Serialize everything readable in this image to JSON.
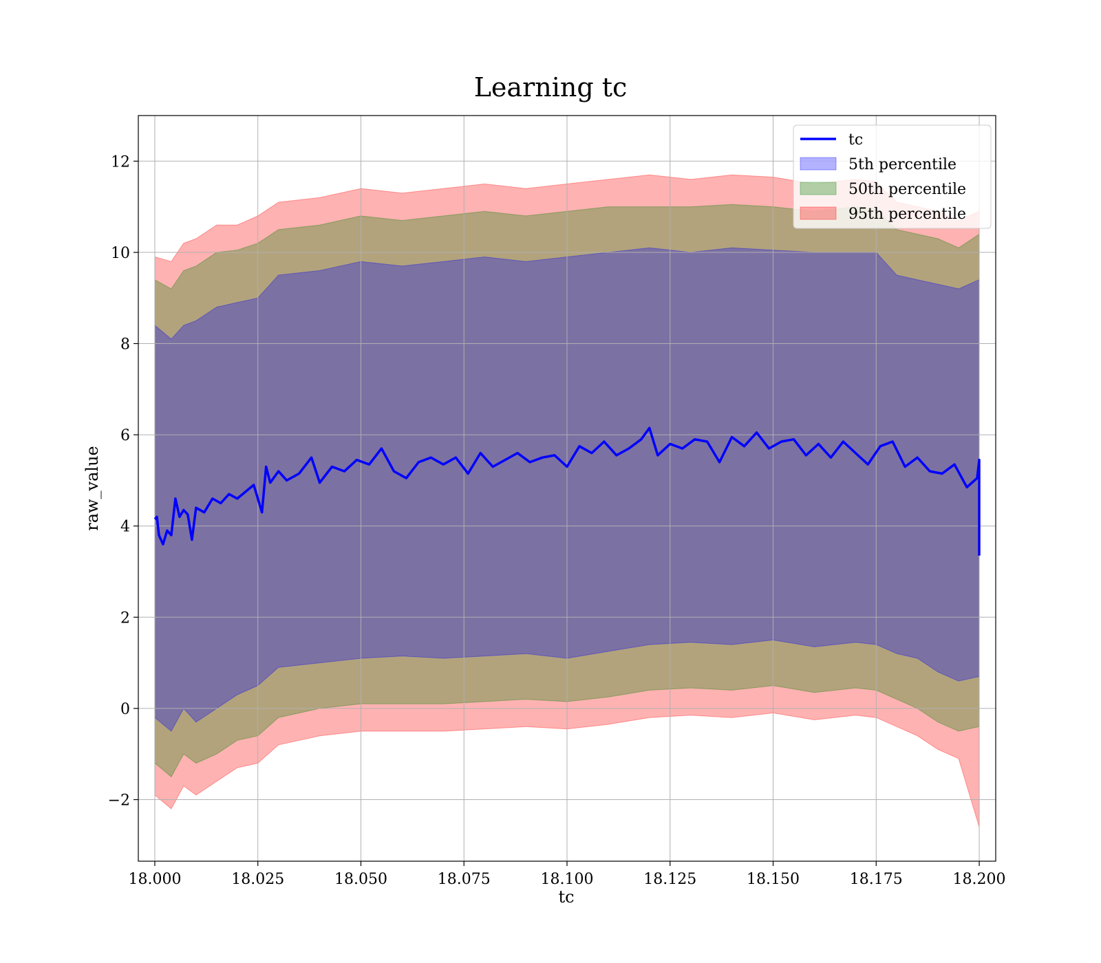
{
  "chart_data": {
    "type": "area",
    "title": "Learning tc",
    "xlabel": "tc",
    "ylabel": "raw_value",
    "xlim": [
      17.996,
      18.204
    ],
    "ylim": [
      -3.35,
      13.0
    ],
    "grid": true,
    "legend_placement": "top-right",
    "x_ticks": [
      18.0,
      18.025,
      18.05,
      18.075,
      18.1,
      18.125,
      18.15,
      18.175,
      18.2
    ],
    "x_tick_labels": [
      "18.000",
      "18.025",
      "18.050",
      "18.075",
      "18.100",
      "18.125",
      "18.150",
      "18.175",
      "18.200"
    ],
    "y_ticks": [
      -2,
      0,
      2,
      4,
      6,
      8,
      10,
      12
    ],
    "y_tick_labels": [
      "−2",
      "0",
      "2",
      "4",
      "6",
      "8",
      "10",
      "12"
    ],
    "legend": [
      {
        "label": "tc",
        "kind": "line",
        "color": "#0000ff"
      },
      {
        "label": "5th percentile",
        "kind": "band",
        "color": "#0000ff"
      },
      {
        "label": "50th percentile",
        "kind": "band",
        "color": "#008000"
      },
      {
        "label": "95th percentile",
        "kind": "band",
        "color": "#ff0000"
      }
    ],
    "series": [
      {
        "name": "tc",
        "kind": "line",
        "color": "#0000ff",
        "x": [
          18.0,
          18.0005,
          18.001,
          18.002,
          18.003,
          18.004,
          18.005,
          18.006,
          18.007,
          18.008,
          18.009,
          18.01,
          18.012,
          18.014,
          18.016,
          18.018,
          18.02,
          18.022,
          18.024,
          18.026,
          18.027,
          18.028,
          18.03,
          18.032,
          18.035,
          18.038,
          18.04,
          18.043,
          18.046,
          18.049,
          18.052,
          18.055,
          18.058,
          18.061,
          18.064,
          18.067,
          18.07,
          18.073,
          18.076,
          18.079,
          18.082,
          18.085,
          18.088,
          18.091,
          18.094,
          18.097,
          18.1,
          18.103,
          18.106,
          18.109,
          18.112,
          18.115,
          18.118,
          18.12,
          18.122,
          18.125,
          18.128,
          18.131,
          18.134,
          18.137,
          18.14,
          18.143,
          18.146,
          18.149,
          18.152,
          18.155,
          18.158,
          18.161,
          18.164,
          18.167,
          18.17,
          18.173,
          18.176,
          18.179,
          18.182,
          18.185,
          18.188,
          18.191,
          18.194,
          18.197,
          18.1995,
          18.2,
          18.2
        ],
        "y": [
          4.15,
          4.2,
          3.8,
          3.6,
          3.9,
          3.8,
          4.6,
          4.2,
          4.35,
          4.25,
          3.7,
          4.4,
          4.3,
          4.6,
          4.5,
          4.7,
          4.6,
          4.75,
          4.9,
          4.3,
          5.3,
          4.95,
          5.2,
          5.0,
          5.15,
          5.5,
          4.95,
          5.3,
          5.2,
          5.45,
          5.35,
          5.7,
          5.2,
          5.05,
          5.4,
          5.5,
          5.35,
          5.5,
          5.15,
          5.6,
          5.3,
          5.45,
          5.6,
          5.4,
          5.5,
          5.55,
          5.3,
          5.75,
          5.6,
          5.85,
          5.55,
          5.7,
          5.9,
          6.15,
          5.55,
          5.8,
          5.7,
          5.9,
          5.85,
          5.4,
          5.95,
          5.75,
          6.05,
          5.7,
          5.85,
          5.9,
          5.55,
          5.8,
          5.5,
          5.85,
          5.6,
          5.35,
          5.75,
          5.85,
          5.3,
          5.5,
          5.2,
          5.15,
          5.35,
          4.85,
          5.05,
          5.45,
          3.35
        ]
      },
      {
        "name": "5th percentile",
        "kind": "band",
        "color": "#0000ff",
        "x": [
          18.0,
          18.004,
          18.007,
          18.01,
          18.015,
          18.02,
          18.025,
          18.03,
          18.04,
          18.05,
          18.06,
          18.07,
          18.08,
          18.09,
          18.1,
          18.11,
          18.12,
          18.13,
          18.14,
          18.15,
          18.16,
          18.17,
          18.175,
          18.18,
          18.185,
          18.19,
          18.195,
          18.2
        ],
        "upper": [
          8.4,
          8.1,
          8.4,
          8.5,
          8.8,
          8.9,
          9.0,
          9.5,
          9.6,
          9.8,
          9.7,
          9.8,
          9.9,
          9.8,
          9.9,
          10.0,
          10.1,
          10.0,
          10.1,
          10.05,
          10.0,
          10.0,
          10.0,
          9.5,
          9.4,
          9.3,
          9.2,
          9.4
        ],
        "lower": [
          -0.2,
          -0.5,
          0.0,
          -0.3,
          0.0,
          0.3,
          0.5,
          0.9,
          1.0,
          1.1,
          1.15,
          1.1,
          1.15,
          1.2,
          1.1,
          1.25,
          1.4,
          1.45,
          1.4,
          1.5,
          1.35,
          1.45,
          1.4,
          1.2,
          1.1,
          0.8,
          0.6,
          0.7
        ]
      },
      {
        "name": "50th percentile",
        "kind": "band",
        "color": "#008000",
        "x": [
          18.0,
          18.004,
          18.007,
          18.01,
          18.015,
          18.02,
          18.025,
          18.03,
          18.04,
          18.05,
          18.06,
          18.07,
          18.08,
          18.09,
          18.1,
          18.11,
          18.12,
          18.13,
          18.14,
          18.15,
          18.16,
          18.17,
          18.175,
          18.18,
          18.185,
          18.19,
          18.195,
          18.2
        ],
        "upper": [
          9.4,
          9.2,
          9.6,
          9.7,
          10.0,
          10.05,
          10.2,
          10.5,
          10.6,
          10.8,
          10.7,
          10.8,
          10.9,
          10.8,
          10.9,
          11.0,
          11.0,
          11.0,
          11.05,
          11.0,
          10.9,
          11.0,
          10.95,
          10.5,
          10.4,
          10.3,
          10.1,
          10.4
        ],
        "lower": [
          -1.2,
          -1.5,
          -1.0,
          -1.2,
          -1.0,
          -0.7,
          -0.6,
          -0.2,
          0.0,
          0.1,
          0.1,
          0.1,
          0.15,
          0.2,
          0.15,
          0.25,
          0.4,
          0.45,
          0.4,
          0.5,
          0.35,
          0.45,
          0.4,
          0.2,
          0.0,
          -0.3,
          -0.5,
          -0.4
        ]
      },
      {
        "name": "95th percentile",
        "kind": "band",
        "color": "#ff0000",
        "x": [
          18.0,
          18.004,
          18.007,
          18.01,
          18.015,
          18.02,
          18.025,
          18.03,
          18.04,
          18.05,
          18.06,
          18.07,
          18.08,
          18.09,
          18.1,
          18.11,
          18.12,
          18.13,
          18.14,
          18.15,
          18.16,
          18.17,
          18.175,
          18.18,
          18.185,
          18.19,
          18.195,
          18.2
        ],
        "upper": [
          9.9,
          9.8,
          10.2,
          10.3,
          10.6,
          10.6,
          10.8,
          11.1,
          11.2,
          11.4,
          11.3,
          11.4,
          11.5,
          11.4,
          11.5,
          11.6,
          11.7,
          11.6,
          11.7,
          11.65,
          11.5,
          11.6,
          11.55,
          11.1,
          11.0,
          10.9,
          10.7,
          10.9
        ],
        "lower": [
          -1.9,
          -2.2,
          -1.7,
          -1.9,
          -1.6,
          -1.3,
          -1.2,
          -0.8,
          -0.6,
          -0.5,
          -0.5,
          -0.5,
          -0.45,
          -0.4,
          -0.45,
          -0.35,
          -0.2,
          -0.15,
          -0.2,
          -0.1,
          -0.25,
          -0.15,
          -0.2,
          -0.4,
          -0.6,
          -0.9,
          -1.1,
          -2.6
        ]
      }
    ]
  }
}
